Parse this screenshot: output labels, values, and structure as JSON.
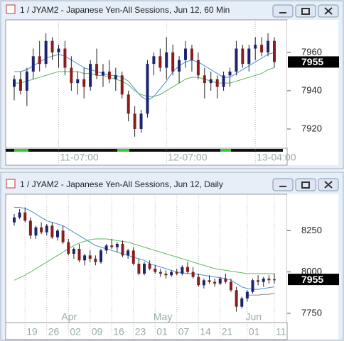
{
  "windows": [
    {
      "title": "1 / JYAM2 - Japanese Yen-All Sessions, Jun 12, 60 Min",
      "chart": {
        "type": "candlestick",
        "ylim": [
          7910,
          7977
        ],
        "yticks": [
          7920,
          7940,
          7960
        ],
        "last_price": 7955,
        "xticks": [
          {
            "value": 7,
            "label": "11-07:00"
          },
          {
            "value": 24,
            "label": "12-07:00"
          },
          {
            "value": 38,
            "label": "13-04:00"
          }
        ],
        "up_color": "#1c2470",
        "down_color": "#8a1c1c",
        "candles": [
          [
            7942,
            7948,
            7935,
            7946
          ],
          [
            7946,
            7950,
            7938,
            7940
          ],
          [
            7940,
            7952,
            7932,
            7950
          ],
          [
            7950,
            7962,
            7946,
            7958
          ],
          [
            7958,
            7966,
            7950,
            7954
          ],
          [
            7954,
            7970,
            7952,
            7966
          ],
          [
            7966,
            7968,
            7956,
            7960
          ],
          [
            7960,
            7964,
            7952,
            7962
          ],
          [
            7962,
            7966,
            7948,
            7952
          ],
          [
            7952,
            7958,
            7940,
            7944
          ],
          [
            7944,
            7950,
            7938,
            7946
          ],
          [
            7946,
            7952,
            7936,
            7942
          ],
          [
            7942,
            7956,
            7940,
            7954
          ],
          [
            7954,
            7962,
            7946,
            7948
          ],
          [
            7948,
            7954,
            7942,
            7950
          ],
          [
            7950,
            7956,
            7944,
            7946
          ],
          [
            7946,
            7952,
            7940,
            7948
          ],
          [
            7948,
            7950,
            7936,
            7938
          ],
          [
            7938,
            7940,
            7924,
            7928
          ],
          [
            7928,
            7932,
            7916,
            7920
          ],
          [
            7920,
            7930,
            7918,
            7928
          ],
          [
            7928,
            7956,
            7926,
            7954
          ],
          [
            7954,
            7960,
            7948,
            7958
          ],
          [
            7958,
            7962,
            7950,
            7952
          ],
          [
            7952,
            7968,
            7946,
            7960
          ],
          [
            7960,
            7964,
            7948,
            7950
          ],
          [
            7950,
            7958,
            7944,
            7956
          ],
          [
            7956,
            7966,
            7952,
            7962
          ],
          [
            7962,
            7964,
            7950,
            7956
          ],
          [
            7956,
            7960,
            7946,
            7948
          ],
          [
            7948,
            7952,
            7936,
            7944
          ],
          [
            7944,
            7950,
            7940,
            7946
          ],
          [
            7946,
            7948,
            7936,
            7942
          ],
          [
            7942,
            7950,
            7940,
            7948
          ],
          [
            7948,
            7952,
            7942,
            7950
          ],
          [
            7950,
            7966,
            7948,
            7962
          ],
          [
            7962,
            7964,
            7952,
            7954
          ],
          [
            7954,
            7964,
            7950,
            7962
          ],
          [
            7962,
            7968,
            7956,
            7964
          ],
          [
            7964,
            7968,
            7958,
            7960
          ],
          [
            7960,
            7970,
            7958,
            7966
          ],
          [
            7966,
            7968,
            7952,
            7955
          ]
        ],
        "ma": [
          {
            "color": "#4a8fd8",
            "values": [
              7950,
              7950,
              7951,
              7953,
              7955,
              7957,
              7958,
              7959,
              7958,
              7956,
              7954,
              7952,
              7951,
              7950,
              7949,
              7948,
              7948,
              7947,
              7945,
              7941,
              7937,
              7935,
              7937,
              7941,
              7945,
              7950,
              7953,
              7955,
              7956,
              7955,
              7953,
              7951,
              7949,
              7947,
              7947,
              7949,
              7951,
              7953,
              7955,
              7957,
              7959,
              7960
            ]
          },
          {
            "color": "#5cb85c",
            "values": [
              7944,
              7944,
              7945,
              7946,
              7947,
              7948,
              7949,
              7950,
              7950,
              7950,
              7950,
              7949,
              7949,
              7948,
              7948,
              7947,
              7946,
              7945,
              7943,
              7940,
              7938,
              7937,
              7937,
              7938,
              7940,
              7942,
              7944,
              7946,
              7947,
              7947,
              7946,
              7945,
              7944,
              7944,
              7944,
              7945,
              7946,
              7947,
              7948,
              7949,
              7951,
              7952
            ]
          }
        ]
      }
    },
    {
      "title": "1 / JYAM2 - Japanese Yen-All Sessions, Jun 12, Daily",
      "chart": {
        "type": "candlestick",
        "ylim": [
          7694,
          8470
        ],
        "yticks": [
          7750,
          8000,
          8250
        ],
        "last_price": 7955,
        "xticks": [
          {
            "value": 2,
            "label": "19"
          },
          {
            "value": 6,
            "label": "26"
          },
          {
            "value": 10,
            "label": "02"
          },
          {
            "value": 14,
            "label": "09"
          },
          {
            "value": 18,
            "label": "16"
          },
          {
            "value": 22,
            "label": "23"
          },
          {
            "value": 26,
            "label": "01"
          },
          {
            "value": 30,
            "label": "07"
          },
          {
            "value": 34,
            "label": "14"
          },
          {
            "value": 38,
            "label": "21"
          },
          {
            "value": 43,
            "label": "01"
          },
          {
            "value": 48,
            "label": "11"
          }
        ],
        "months": [
          {
            "value": 10,
            "label": "Apr"
          },
          {
            "value": 27,
            "label": "May"
          },
          {
            "value": 44,
            "label": "Jun"
          }
        ],
        "up_color": "#1c2470",
        "down_color": "#8a1c1c",
        "candles": [
          [
            8300,
            8350,
            8280,
            8330
          ],
          [
            8330,
            8380,
            8320,
            8360
          ],
          [
            8360,
            8390,
            8300,
            8310
          ],
          [
            8310,
            8330,
            8200,
            8220
          ],
          [
            8220,
            8280,
            8200,
            8270
          ],
          [
            8270,
            8300,
            8230,
            8240
          ],
          [
            8240,
            8290,
            8220,
            8280
          ],
          [
            8280,
            8300,
            8200,
            8210
          ],
          [
            8210,
            8260,
            8190,
            8250
          ],
          [
            8250,
            8280,
            8170,
            8180
          ],
          [
            8180,
            8200,
            8100,
            8110
          ],
          [
            8110,
            8150,
            8080,
            8140
          ],
          [
            8140,
            8170,
            8060,
            8070
          ],
          [
            8070,
            8110,
            8040,
            8100
          ],
          [
            8100,
            8130,
            8060,
            8080
          ],
          [
            8080,
            8100,
            8040,
            8060
          ],
          [
            8060,
            8140,
            8050,
            8130
          ],
          [
            8130,
            8170,
            8110,
            8160
          ],
          [
            8160,
            8200,
            8140,
            8150
          ],
          [
            8150,
            8180,
            8120,
            8170
          ],
          [
            8170,
            8190,
            8090,
            8100
          ],
          [
            8100,
            8140,
            8080,
            8130
          ],
          [
            8130,
            8150,
            8040,
            8050
          ],
          [
            8050,
            8080,
            7980,
            7990
          ],
          [
            7990,
            8060,
            7980,
            8050
          ],
          [
            8050,
            8070,
            8010,
            8020
          ],
          [
            8020,
            8040,
            7990,
            8000
          ],
          [
            8000,
            8020,
            7970,
            7990
          ],
          [
            7990,
            8010,
            7960,
            7980
          ],
          [
            7980,
            8010,
            7970,
            8000
          ],
          [
            8000,
            8020,
            7980,
            7990
          ],
          [
            7990,
            8040,
            7980,
            8030
          ],
          [
            8030,
            8060,
            7990,
            8000
          ],
          [
            8000,
            8030,
            7960,
            7970
          ],
          [
            7970,
            7990,
            7910,
            7920
          ],
          [
            7920,
            7960,
            7900,
            7950
          ],
          [
            7950,
            7980,
            7930,
            7940
          ],
          [
            7940,
            7960,
            7910,
            7930
          ],
          [
            7930,
            7970,
            7920,
            7960
          ],
          [
            7960,
            7990,
            7930,
            7940
          ],
          [
            7940,
            7960,
            7880,
            7890
          ],
          [
            7890,
            7910,
            7760,
            7790
          ],
          [
            7790,
            7850,
            7780,
            7840
          ],
          [
            7840,
            7890,
            7820,
            7880
          ],
          [
            7880,
            7960,
            7870,
            7950
          ],
          [
            7950,
            7980,
            7920,
            7940
          ],
          [
            7940,
            7970,
            7910,
            7960
          ],
          [
            7960,
            7980,
            7930,
            7950
          ],
          [
            7950,
            7990,
            7930,
            7955
          ]
        ],
        "ma": [
          {
            "color": "#4a8fd8",
            "values": [
              8390,
              8390,
              8385,
              8370,
              8350,
              8330,
              8310,
              8300,
              8290,
              8280,
              8260,
              8240,
              8220,
              8200,
              8180,
              8160,
              8150,
              8140,
              8130,
              8120,
              8110,
              8100,
              8090,
              8080,
              8070,
              8050,
              8040,
              8030,
              8020,
              8010,
              8000,
              7995,
              7990,
              7990,
              7985,
              7980,
              7975,
              7970,
              7965,
              7960,
              7950,
              7930,
              7910,
              7900,
              7895,
              7895,
              7900,
              7905,
              7910
            ]
          },
          {
            "color": "#5cb85c",
            "values": [
              7950,
              7965,
              7980,
              8000,
              8020,
              8040,
              8060,
              8080,
              8100,
              8120,
              8140,
              8160,
              8175,
              8185,
              8195,
              8200,
              8200,
              8200,
              8195,
              8190,
              8185,
              8180,
              8170,
              8160,
              8150,
              8140,
              8130,
              8120,
              8110,
              8100,
              8090,
              8080,
              8070,
              8060,
              8050,
              8040,
              8030,
              8020,
              8015,
              8010,
              8005,
              8000,
              7995,
              7990,
              7990,
              7990,
              7990,
              7990,
              7990
            ]
          },
          {
            "color": "#888888",
            "values": [
              null,
              null,
              null,
              null,
              null,
              null,
              null,
              null,
              null,
              null,
              null,
              null,
              null,
              null,
              null,
              null,
              null,
              null,
              null,
              null,
              null,
              null,
              null,
              null,
              null,
              null,
              null,
              null,
              null,
              null,
              null,
              null,
              null,
              null,
              null,
              null,
              null,
              null,
              null,
              null,
              null,
              null,
              null,
              7860,
              7860,
              7860,
              7865,
              7865,
              7870
            ]
          }
        ]
      }
    }
  ]
}
